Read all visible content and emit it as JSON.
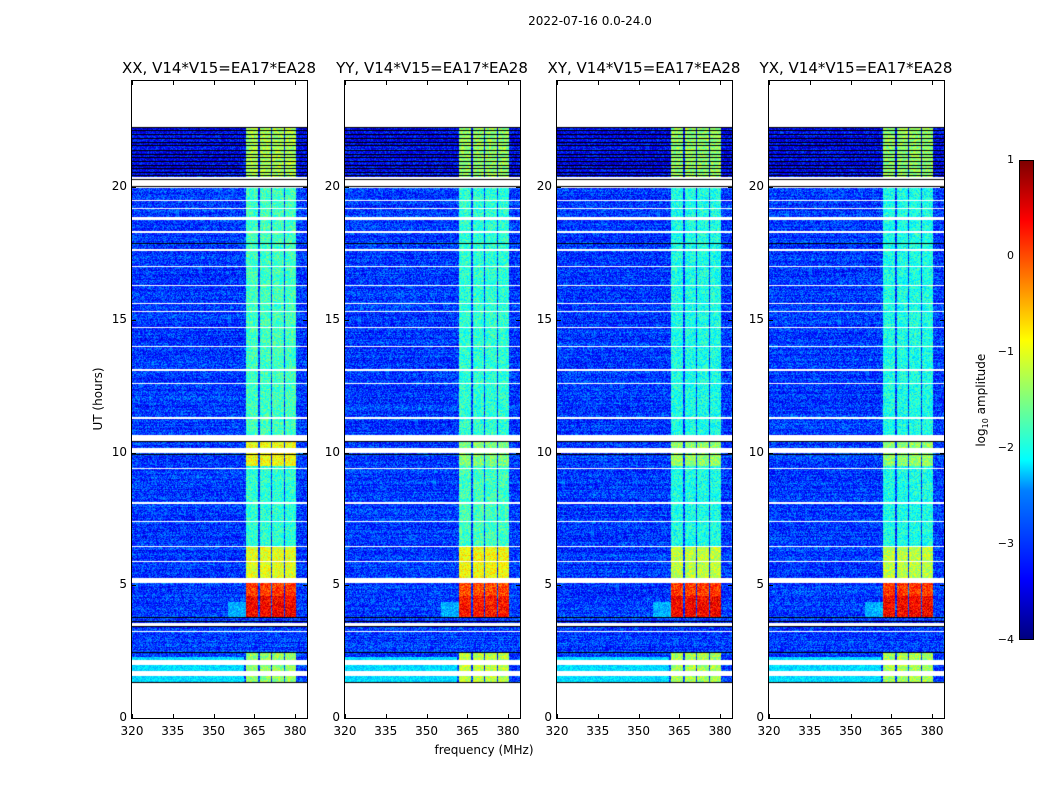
{
  "suptitle": "2022-07-16 0.0-24.0",
  "chart_data": [
    {
      "type": "heatmap",
      "title": "XX, V14*V15=EA17*EA28",
      "band_levels": [
        [
          1.35,
          2.5,
          -1.4
        ],
        [
          3.8,
          5.1,
          0.1
        ],
        [
          5.3,
          6.5,
          -1.0
        ],
        [
          6.5,
          9.5,
          -1.9
        ],
        [
          9.5,
          10.4,
          -0.9
        ],
        [
          10.4,
          20.0,
          -1.8
        ],
        [
          20.4,
          22.3,
          -1.3
        ]
      ]
    },
    {
      "type": "heatmap",
      "title": "YY, V14*V15=EA17*EA28",
      "band_levels": [
        [
          1.35,
          2.5,
          -1.2
        ],
        [
          3.8,
          5.1,
          0.0
        ],
        [
          5.3,
          6.5,
          -0.9
        ],
        [
          6.5,
          9.5,
          -1.8
        ],
        [
          9.5,
          10.4,
          -1.5
        ],
        [
          10.4,
          20.0,
          -1.9
        ],
        [
          20.4,
          22.3,
          -1.4
        ]
      ]
    },
    {
      "type": "heatmap",
      "title": "XY, V14*V15=EA17*EA28",
      "band_levels": [
        [
          1.35,
          2.5,
          -1.3
        ],
        [
          3.8,
          5.1,
          0.1
        ],
        [
          5.3,
          6.5,
          -1.2
        ],
        [
          6.5,
          9.5,
          -2.0
        ],
        [
          9.5,
          10.4,
          -1.4
        ],
        [
          10.4,
          20.0,
          -2.0
        ],
        [
          20.4,
          22.3,
          -1.4
        ]
      ]
    },
    {
      "type": "heatmap",
      "title": "YX, V14*V15=EA17*EA28",
      "band_levels": [
        [
          1.35,
          2.5,
          -1.3
        ],
        [
          3.8,
          5.1,
          0.1
        ],
        [
          5.3,
          6.5,
          -1.2
        ],
        [
          6.5,
          9.5,
          -2.0
        ],
        [
          9.5,
          10.4,
          -1.4
        ],
        [
          10.4,
          20.0,
          -2.0
        ],
        [
          20.4,
          22.3,
          -1.4
        ]
      ]
    }
  ],
  "shared": {
    "xlabel": "frequency (MHz)",
    "ylabel": "UT (hours)",
    "xlim": [
      320,
      384.4
    ],
    "ylim": [
      0,
      24
    ],
    "xticks": [
      "320",
      "335",
      "350",
      "365",
      "380"
    ],
    "xtick_values": [
      320,
      335,
      350,
      365,
      380
    ],
    "yticks": [
      "0",
      "5",
      "10",
      "15",
      "20"
    ],
    "ytick_values": [
      0,
      5,
      10,
      15,
      20
    ],
    "data_hours": [
      1.35,
      22.3
    ],
    "noise_floor_log": -3.1,
    "band_subchannels_mhz": [
      [
        361.8,
        366.2
      ],
      [
        366.8,
        370.8
      ],
      [
        371.4,
        375.6
      ],
      [
        376.2,
        380.2
      ]
    ],
    "flagged_white_hours": [
      [
        1.6,
        1.78
      ],
      [
        2.0,
        2.22
      ],
      [
        3.25,
        3.3
      ],
      [
        3.5,
        3.6
      ],
      [
        5.1,
        5.3
      ],
      [
        5.9,
        5.95
      ],
      [
        6.45,
        6.5
      ],
      [
        7.4,
        7.45
      ],
      [
        8.1,
        8.15
      ],
      [
        9.4,
        9.45
      ],
      [
        10.0,
        10.2
      ],
      [
        10.45,
        10.7
      ],
      [
        11.3,
        11.35
      ],
      [
        12.6,
        12.65
      ],
      [
        13.1,
        13.15
      ],
      [
        14.0,
        14.05
      ],
      [
        14.7,
        14.75
      ],
      [
        15.3,
        15.35
      ],
      [
        15.6,
        15.65
      ],
      [
        16.3,
        16.35
      ],
      [
        17.0,
        17.05
      ],
      [
        17.6,
        17.7
      ],
      [
        18.3,
        18.35
      ],
      [
        18.8,
        18.9
      ],
      [
        19.2,
        19.25
      ],
      [
        19.5,
        19.55
      ],
      [
        20.0,
        20.4
      ]
    ],
    "black_line_hours": [
      1.35,
      2.5,
      3.45,
      3.65,
      3.8,
      9.95,
      10.45,
      17.9,
      20.05,
      20.3
    ],
    "colorbar": {
      "label": "log10 amplitude",
      "range": [
        -4,
        1
      ],
      "ticks": [
        "1",
        "0",
        "−1",
        "−2",
        "−3",
        "−4"
      ],
      "tick_values": [
        1,
        0,
        -1,
        -2,
        -3,
        -4
      ],
      "colormap": "jet"
    }
  }
}
